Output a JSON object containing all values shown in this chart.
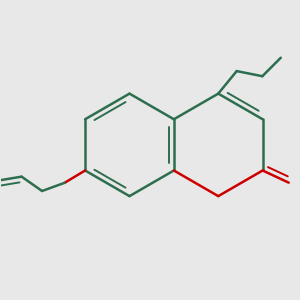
{
  "bg_color": "#e8e8e8",
  "bond_color": "#2d6e4e",
  "oxygen_color": "#cc0000",
  "line_width": 1.8,
  "fig_width": 3.0,
  "fig_height": 3.0,
  "dpi": 100
}
